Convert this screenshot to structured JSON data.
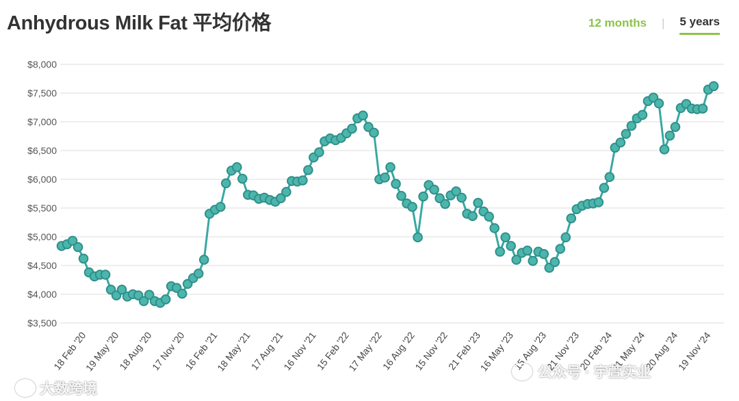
{
  "page": {
    "title": "Anhydrous Milk Fat 平均价格",
    "tabs": [
      {
        "label": "12 months"
      },
      {
        "label": "5 years"
      }
    ],
    "separator": "|",
    "watermark_left": "大数跨境",
    "watermark_right": "公众号 · 宇萱实业"
  },
  "colors": {
    "line": "#3aa7a3",
    "marker_fill": "#4db6ac",
    "marker_stroke": "#2f8f8a",
    "grid": "#e3e3e3",
    "accent": "#8bc34a"
  },
  "chart_data": {
    "type": "line",
    "title": "Anhydrous Milk Fat 平均价格",
    "ylabel": "",
    "xlabel": "",
    "ylim": [
      3500,
      8000
    ],
    "yticks": [
      3500,
      4000,
      4500,
      5000,
      5500,
      6000,
      6500,
      7000,
      7500,
      8000
    ],
    "ytick_labels": [
      "$3,500",
      "$4,000",
      "$4,500",
      "$5,000",
      "$5,500",
      "$6,000",
      "$6,500",
      "$7,000",
      "$7,500",
      "$8,000"
    ],
    "xtick_labels": [
      "18 Feb '20",
      "19 May '20",
      "18 Aug '20",
      "17 Nov '20",
      "16 Feb '21",
      "18 May '21",
      "17 Aug '21",
      "16 Nov '21",
      "15 Feb '22",
      "17 May '22",
      "16 Aug '22",
      "15 Nov '22",
      "21 Feb '23",
      "16 May '23",
      "15 Aug '23",
      "21 Nov '23",
      "20 Feb '24",
      "21 May '24",
      "20 Aug '24",
      "19 Nov '24"
    ],
    "xtick_index": [
      4,
      10,
      16,
      22,
      28,
      34,
      40,
      46,
      52,
      58,
      64,
      70,
      76,
      82,
      88,
      94,
      100,
      106,
      112,
      118
    ],
    "grid": true,
    "legend": "none",
    "series": [
      {
        "values": [
          4840,
          4870,
          4930,
          4820,
          4620,
          4380,
          4310,
          4340,
          4340,
          4080,
          3980,
          4080,
          3960,
          4000,
          3980,
          3880,
          3990,
          3880,
          3850,
          3910,
          4140,
          4110,
          4010,
          4180,
          4280,
          4360,
          4600,
          5400,
          5470,
          5520,
          5930,
          6150,
          6210,
          6010,
          5730,
          5720,
          5660,
          5680,
          5640,
          5610,
          5670,
          5780,
          5970,
          5960,
          5980,
          6160,
          6380,
          6470,
          6660,
          6710,
          6680,
          6720,
          6800,
          6880,
          7060,
          7110,
          6910,
          6810,
          6000,
          6030,
          6210,
          5920,
          5710,
          5580,
          5520,
          4990,
          5700,
          5900,
          5820,
          5670,
          5570,
          5720,
          5790,
          5680,
          5400,
          5360,
          5590,
          5440,
          5350,
          5150,
          4740,
          4990,
          4840,
          4600,
          4720,
          4760,
          4580,
          4740,
          4700,
          4460,
          4560,
          4790,
          4990,
          5320,
          5480,
          5540,
          5570,
          5580,
          5600,
          5850,
          6040,
          6550,
          6640,
          6790,
          6930,
          7060,
          7120,
          7360,
          7420,
          7320,
          6520,
          6760,
          6910,
          7240,
          7310,
          7230,
          7220,
          7230,
          7560,
          7620
        ]
      }
    ]
  }
}
